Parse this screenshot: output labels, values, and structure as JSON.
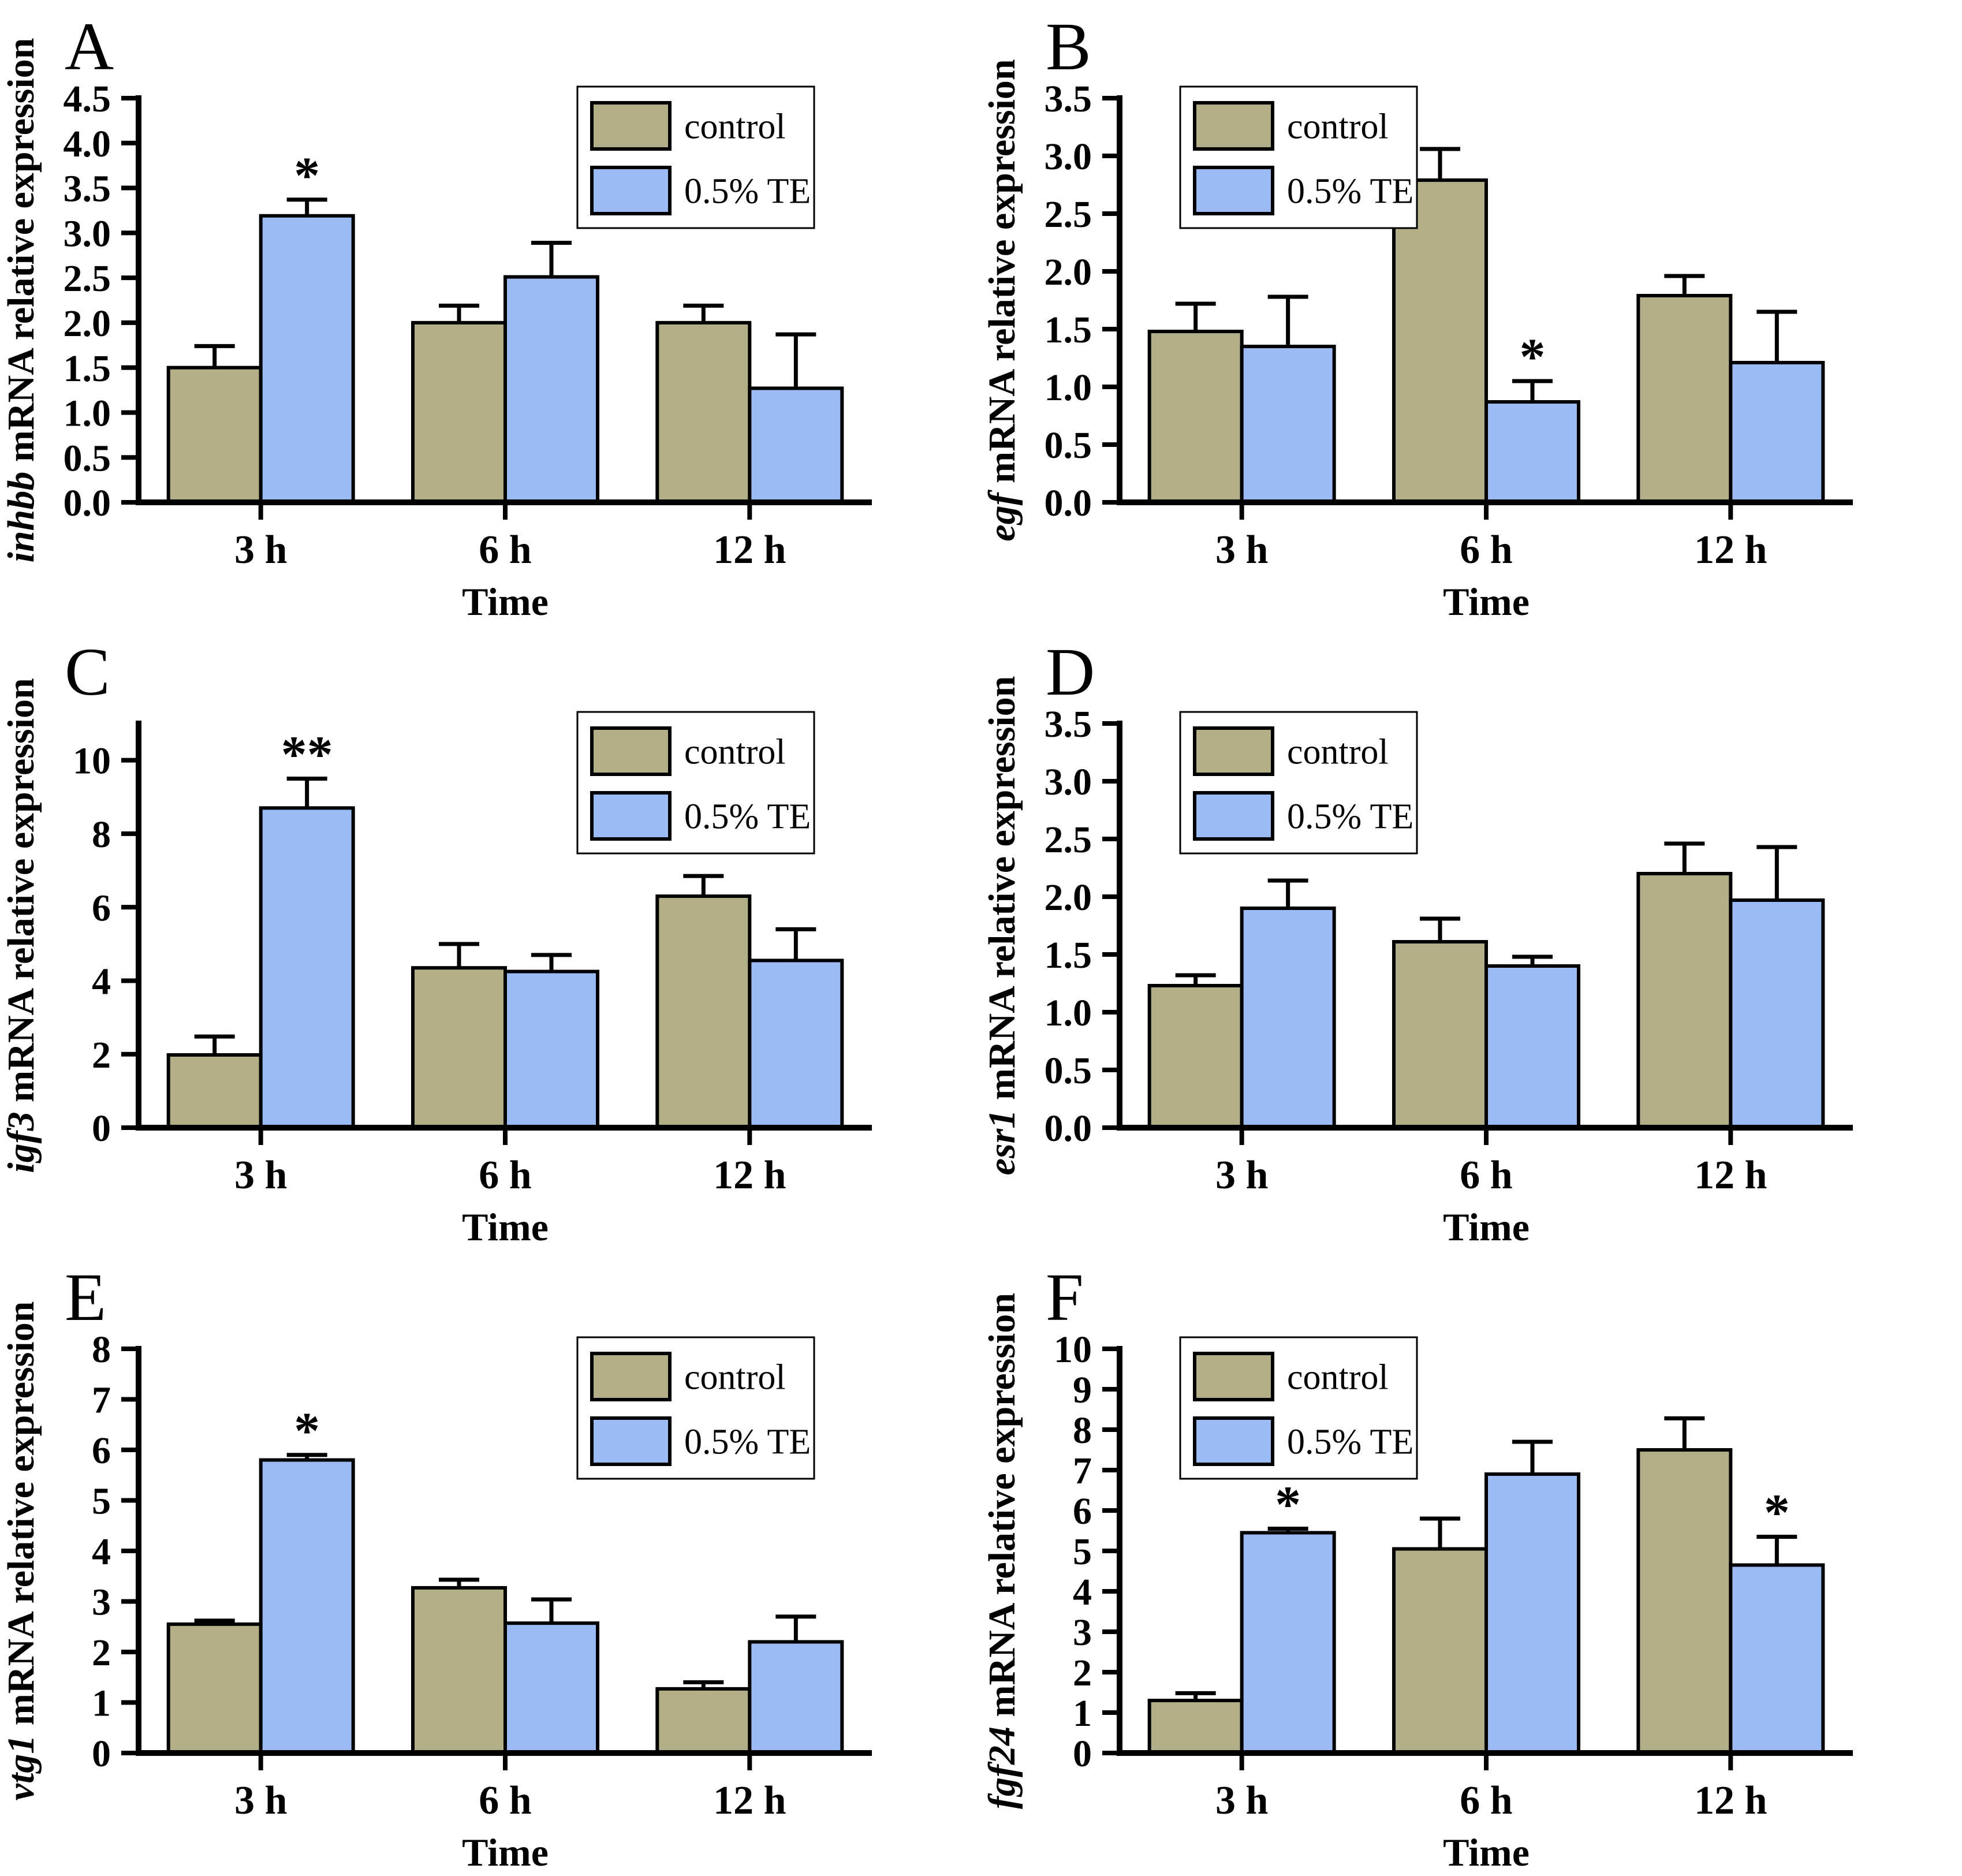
{
  "style": {
    "series_colors": [
      "#b1ae88",
      "#9cbbf4"
    ],
    "bar_border_color": "#000000",
    "axis_color": "#000000",
    "error_bar_color": "#000000",
    "text_color": "#000000",
    "legend_background": "#ffffff",
    "legend_border_color": "#000000",
    "background": "#ffffff"
  },
  "chart_data": [
    {
      "type": "bar",
      "panel_label": "A",
      "gene": "inhbb",
      "ylabel_rest": " mRNA relative expression",
      "xlabel": "Time",
      "categories": [
        "3 h",
        "6 h",
        "12 h"
      ],
      "ylim": [
        0,
        4.5
      ],
      "ytick_step": 0.5,
      "ytick_decimals": 1,
      "axis_max_display": 4.5,
      "legend_position": "top-right",
      "series": [
        {
          "name": "control",
          "values": [
            1.5,
            2.0,
            2.0
          ],
          "errors_plus": [
            0.24,
            0.19,
            0.19
          ]
        },
        {
          "name": "0.5% TE",
          "values": [
            3.19,
            2.51,
            1.27
          ],
          "errors_plus": [
            0.18,
            0.38,
            0.6
          ]
        }
      ],
      "significance": [
        {
          "series_index": 1,
          "category_index": 0,
          "symbol": "*"
        }
      ]
    },
    {
      "type": "bar",
      "panel_label": "B",
      "gene": "egf",
      "ylabel_rest": " mRNA relative expression",
      "xlabel": "Time",
      "categories": [
        "3 h",
        "6 h",
        "12 h"
      ],
      "ylim": [
        0,
        3.5
      ],
      "ytick_step": 0.5,
      "ytick_decimals": 1,
      "axis_max_display": 3.5,
      "legend_position": "top-left",
      "series": [
        {
          "name": "control",
          "values": [
            1.48,
            2.79,
            1.79
          ],
          "errors_plus": [
            0.24,
            0.27,
            0.17
          ]
        },
        {
          "name": "0.5% TE",
          "values": [
            1.35,
            0.87,
            1.21
          ],
          "errors_plus": [
            0.43,
            0.18,
            0.44
          ]
        }
      ],
      "significance": [
        {
          "series_index": 1,
          "category_index": 1,
          "symbol": "*"
        }
      ]
    },
    {
      "type": "bar",
      "panel_label": "C",
      "gene": "igf3",
      "ylabel_rest": " mRNA relative expression",
      "xlabel": "Time",
      "categories": [
        "3 h",
        "6 h",
        "12 h"
      ],
      "ylim": [
        0,
        10
      ],
      "ytick_step": 2,
      "ytick_decimals": 0,
      "axis_max_display": 11,
      "legend_position": "top-right",
      "series": [
        {
          "name": "control",
          "values": [
            1.98,
            4.35,
            6.3
          ],
          "errors_plus": [
            0.5,
            0.65,
            0.55
          ]
        },
        {
          "name": "0.5% TE",
          "values": [
            8.7,
            4.25,
            4.55
          ],
          "errors_plus": [
            0.8,
            0.45,
            0.85
          ]
        }
      ],
      "significance": [
        {
          "series_index": 1,
          "category_index": 0,
          "symbol": "**"
        }
      ]
    },
    {
      "type": "bar",
      "panel_label": "D",
      "gene": "esr1",
      "ylabel_rest": " mRNA relative expression",
      "xlabel": "Time",
      "categories": [
        "3 h",
        "6 h",
        "12 h"
      ],
      "ylim": [
        0,
        3.5
      ],
      "ytick_step": 0.5,
      "ytick_decimals": 1,
      "axis_max_display": 3.5,
      "legend_position": "top-left",
      "series": [
        {
          "name": "control",
          "values": [
            1.23,
            1.61,
            2.2
          ],
          "errors_plus": [
            0.09,
            0.2,
            0.26
          ]
        },
        {
          "name": "0.5% TE",
          "values": [
            1.9,
            1.4,
            1.97
          ],
          "errors_plus": [
            0.24,
            0.08,
            0.46
          ]
        }
      ],
      "significance": []
    },
    {
      "type": "bar",
      "panel_label": "E",
      "gene": "vtg1",
      "ylabel_rest": " mRNA relative expression",
      "xlabel": "Time",
      "categories": [
        "3 h",
        "6 h",
        "12 h"
      ],
      "ylim": [
        0,
        8
      ],
      "ytick_step": 1,
      "ytick_decimals": 0,
      "axis_max_display": 8,
      "legend_position": "top-right",
      "series": [
        {
          "name": "control",
          "values": [
            2.55,
            3.27,
            1.27
          ],
          "errors_plus": [
            0.07,
            0.16,
            0.13
          ]
        },
        {
          "name": "0.5% TE",
          "values": [
            5.8,
            2.57,
            2.2
          ],
          "errors_plus": [
            0.1,
            0.47,
            0.5
          ]
        }
      ],
      "significance": [
        {
          "series_index": 1,
          "category_index": 0,
          "symbol": "*"
        }
      ]
    },
    {
      "type": "bar",
      "panel_label": "F",
      "gene": "fgf24",
      "ylabel_rest": " mRNA relative expression",
      "xlabel": "Time",
      "categories": [
        "3 h",
        "6 h",
        "12 h"
      ],
      "ylim": [
        0,
        10
      ],
      "ytick_step": 1,
      "ytick_decimals": 0,
      "axis_max_display": 10,
      "legend_position": "top-left",
      "series": [
        {
          "name": "control",
          "values": [
            1.3,
            5.05,
            7.5
          ],
          "errors_plus": [
            0.18,
            0.75,
            0.78
          ]
        },
        {
          "name": "0.5% TE",
          "values": [
            5.45,
            6.9,
            4.65
          ],
          "errors_plus": [
            0.1,
            0.8,
            0.7
          ]
        }
      ],
      "significance": [
        {
          "series_index": 1,
          "category_index": 0,
          "symbol": "*"
        },
        {
          "series_index": 1,
          "category_index": 2,
          "symbol": "*"
        }
      ]
    }
  ]
}
